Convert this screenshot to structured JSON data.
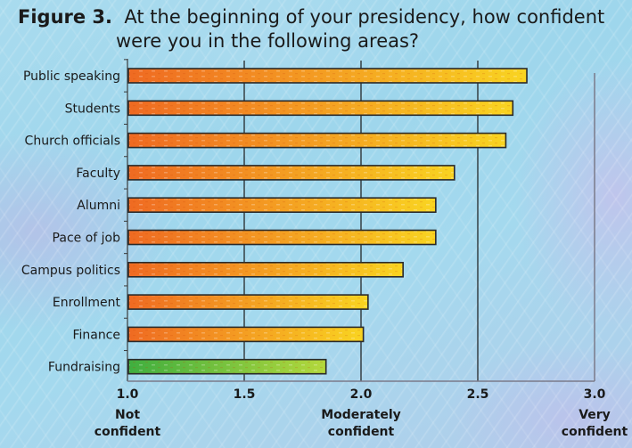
{
  "title": {
    "figure_label": "Figure 3.",
    "line1": "At the beginning of your presidency, how confident",
    "line2": "were you in the following areas?"
  },
  "colors": {
    "bar_gradient_start": "#ef6a22",
    "bar_gradient_end": "#f9d421",
    "highlight_gradient_start": "#3fae3f",
    "highlight_gradient_end": "#b4d83c",
    "bar_stroke": "#2a2a2a",
    "gridline": "#1a1a1a",
    "axis": "#7a7a8a"
  },
  "chart_data": {
    "type": "bar",
    "orientation": "horizontal",
    "title": "At the beginning of your presidency, how confident were you in the following areas?",
    "xlabel": "",
    "ylabel": "",
    "categories": [
      "Public speaking",
      "Students",
      "Church officials",
      "Faculty",
      "Alumni",
      "Pace of job",
      "Campus politics",
      "Enrollment",
      "Finance",
      "Fundraising"
    ],
    "values": [
      2.71,
      2.65,
      2.62,
      2.4,
      2.32,
      2.32,
      2.18,
      2.03,
      2.01,
      1.85
    ],
    "highlighted_category": "Fundraising",
    "xlim": [
      1.0,
      3.0
    ],
    "xticks": [
      {
        "value": 1.0,
        "label": "1.0",
        "sublabel": [
          "Not",
          "confident"
        ]
      },
      {
        "value": 1.5,
        "label": "1.5",
        "sublabel": []
      },
      {
        "value": 2.0,
        "label": "2.0",
        "sublabel": [
          "Moderately",
          "confident"
        ]
      },
      {
        "value": 2.5,
        "label": "2.5",
        "sublabel": []
      },
      {
        "value": 3.0,
        "label": "3.0",
        "sublabel": [
          "Very",
          "confident"
        ]
      }
    ],
    "grid": "vertical",
    "legend": "none"
  }
}
